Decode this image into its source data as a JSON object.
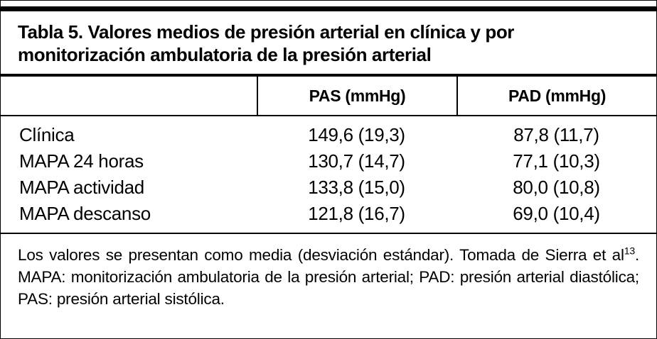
{
  "table": {
    "title": "Tabla 5. Valores medios de presión arterial en clínica y por monitorización ambulatoria de la presión arterial",
    "header": {
      "col_pas": "PAS (mmHg)",
      "col_pad": "PAD (mmHg)"
    },
    "rows": [
      {
        "label": "Clínica",
        "pas": "149,6 (19,3)",
        "pad": "87,8 (11,7)"
      },
      {
        "label": "MAPA 24 horas",
        "pas": "130,7 (14,7)",
        "pad": "77,1 (10,3)"
      },
      {
        "label": "MAPA actividad",
        "pas": "133,8 (15,0)",
        "pad": "80,0 (10,8)"
      },
      {
        "label": "MAPA descanso",
        "pas": "121,8 (16,7)",
        "pad": "69,0 (10,4)"
      }
    ],
    "footnote": {
      "part1": "Los valores se presentan como media (desviación estándar). Tomada de Sierra et al",
      "sup": "13",
      "part2": ". MAPA: monitorización ambulatoria de la presión arterial; PAD: presión arterial diastólica; PAS: presión arterial sistólica."
    },
    "colors": {
      "rule": "#000000",
      "text": "#000000",
      "background": "#ffffff"
    }
  },
  "chart_data": {
    "type": "table",
    "title": "Tabla 5. Valores medios de presión arterial en clínica y por monitorización ambulatoria de la presión arterial",
    "columns": [
      "",
      "PAS (mmHg)",
      "PAD (mmHg)"
    ],
    "rows": [
      [
        "Clínica",
        "149,6 (19,3)",
        "87,8 (11,7)"
      ],
      [
        "MAPA 24 horas",
        "130,7 (14,7)",
        "77,1 (10,3)"
      ],
      [
        "MAPA actividad",
        "133,8 (15,0)",
        "80,0 (10,8)"
      ],
      [
        "MAPA descanso",
        "121,8 (16,7)",
        "69,0 (10,4)"
      ]
    ],
    "note": "Los valores se presentan como media (desviación estándar). Tomada de Sierra et al13. MAPA: monitorización ambulatoria de la presión arterial; PAD: presión arterial diastólica; PAS: presión arterial sistólica."
  }
}
